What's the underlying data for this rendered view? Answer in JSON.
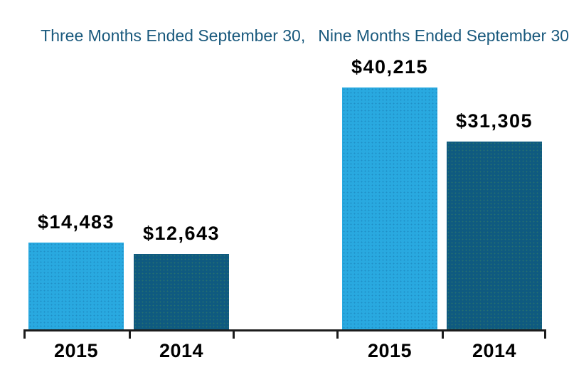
{
  "chart_data": {
    "type": "bar",
    "title": "Three Months Ended September 30,  Nine Months Ended September 30,",
    "groups": [
      {
        "period": "Three Months Ended September 30,",
        "bars": [
          {
            "category": "2015",
            "value": 14483,
            "value_label": "$14,483",
            "color_key": "light_blue"
          },
          {
            "category": "2014",
            "value": 12643,
            "value_label": "$12,643",
            "color_key": "dark_blue"
          }
        ]
      },
      {
        "period": "Nine Months Ended September 30,",
        "bars": [
          {
            "category": "2015",
            "value": 40215,
            "value_label": "$40,215",
            "color_key": "light_blue"
          },
          {
            "category": "2014",
            "value": 31305,
            "value_label": "$31,305",
            "color_key": "dark_blue"
          }
        ]
      }
    ],
    "colors": {
      "light_blue": "#29A9E0",
      "dark_blue": "#0F5A80",
      "title_text": "#19597D",
      "value_text": "#000000",
      "axis": "#1C1C1C"
    },
    "ylim": [
      0,
      40215
    ],
    "grid": false,
    "legend": null,
    "xlabel": "",
    "ylabel": "",
    "value_label_position": "above bars"
  }
}
